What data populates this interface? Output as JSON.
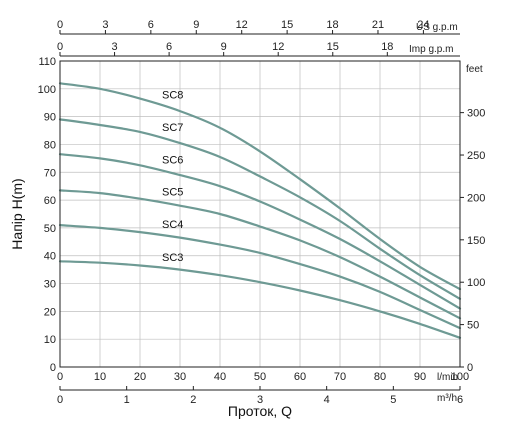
{
  "chart_data": {
    "type": "line",
    "ylabel": "Напір H(m)",
    "xlabel": "Проток, Q",
    "x_unit": "l/min",
    "ylim": [
      0,
      110
    ],
    "xlim": [
      0,
      100
    ],
    "y_ticks": [
      "0",
      "10",
      "20",
      "30",
      "40",
      "50",
      "60",
      "70",
      "80",
      "90",
      "100",
      "110"
    ],
    "x_ticks": [
      "0",
      "10",
      "20",
      "30",
      "40",
      "50",
      "60",
      "70",
      "80",
      "90",
      "100"
    ],
    "y2_axis": {
      "unit": "feet",
      "ticks": [
        "0",
        "50",
        "100",
        "150",
        "200",
        "250",
        "300"
      ]
    },
    "x_axis_m3h": {
      "unit": "m³/h",
      "ticks": [
        "0",
        "1",
        "2",
        "3",
        "4",
        "5",
        "6"
      ]
    },
    "x_axis_us_gpm": {
      "unit": "US g.p.m",
      "ticks": [
        "0",
        "3",
        "6",
        "9",
        "12",
        "15",
        "18",
        "21",
        "24"
      ]
    },
    "x_axis_imp_gpm": {
      "unit": "Imp g.p.m",
      "ticks": [
        "0",
        "3",
        "6",
        "9",
        "12",
        "15",
        "18"
      ]
    },
    "grid": true,
    "series": [
      {
        "name": "SC8",
        "x": [
          0,
          10,
          20,
          30,
          40,
          50,
          60,
          70,
          80,
          90,
          100
        ],
        "y": [
          102,
          100,
          96.5,
          92,
          86,
          77.5,
          67.5,
          57,
          46,
          36,
          28
        ]
      },
      {
        "name": "SC7",
        "x": [
          0,
          10,
          20,
          30,
          40,
          50,
          60,
          70,
          80,
          90,
          100
        ],
        "y": [
          89,
          87,
          84.5,
          80.5,
          75.5,
          68.5,
          61,
          52.5,
          42.5,
          33,
          24.5
        ]
      },
      {
        "name": "SC6",
        "x": [
          0,
          10,
          20,
          30,
          40,
          50,
          60,
          70,
          80,
          90,
          100
        ],
        "y": [
          76.5,
          75,
          72.5,
          69,
          65,
          59.5,
          53,
          46,
          38,
          29.5,
          21
        ]
      },
      {
        "name": "SC5",
        "x": [
          0,
          10,
          20,
          30,
          40,
          50,
          60,
          70,
          80,
          90,
          100
        ],
        "y": [
          63.5,
          62.5,
          60.5,
          58,
          55,
          50.5,
          45.5,
          39.5,
          32.5,
          25,
          17.5
        ]
      },
      {
        "name": "SC4",
        "x": [
          0,
          10,
          20,
          30,
          40,
          50,
          60,
          70,
          80,
          90,
          100
        ],
        "y": [
          51,
          50,
          48.5,
          46.5,
          44,
          41,
          37,
          32.5,
          27,
          20.5,
          14
        ]
      },
      {
        "name": "SC3",
        "x": [
          0,
          10,
          20,
          30,
          40,
          50,
          60,
          70,
          80,
          90,
          100
        ],
        "y": [
          38,
          37.5,
          36.5,
          35,
          33,
          30.5,
          27.5,
          24,
          20,
          15.5,
          10.5
        ]
      }
    ]
  }
}
